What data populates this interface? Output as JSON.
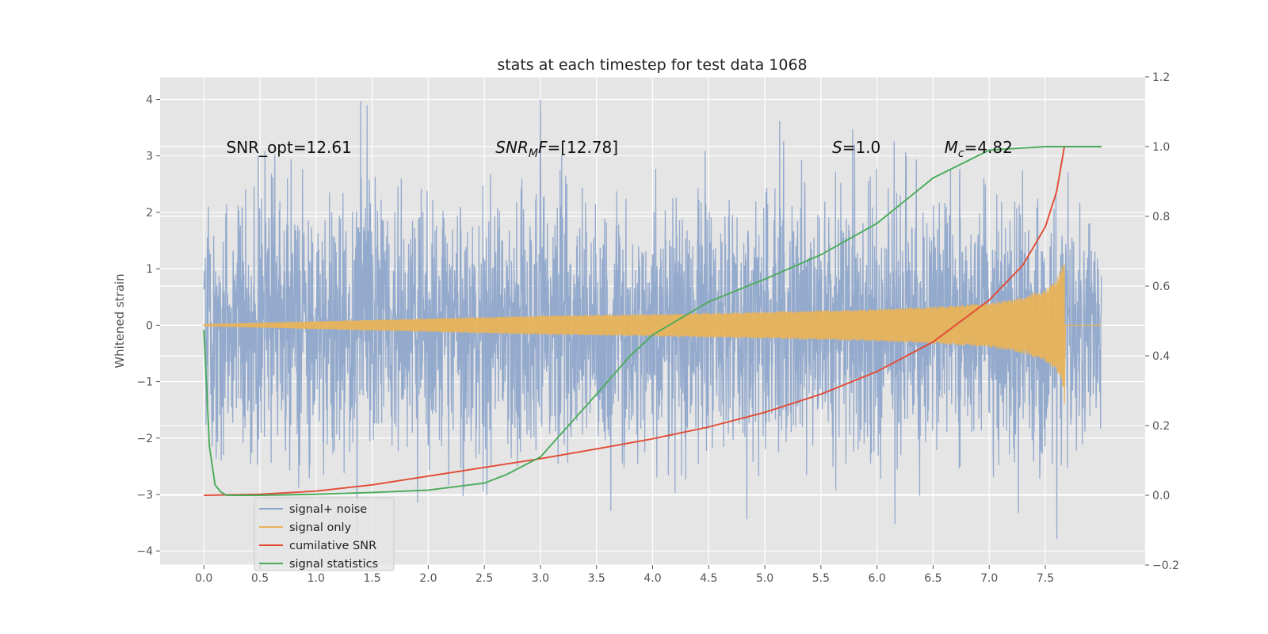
{
  "chart_data": {
    "type": "line",
    "title": "stats at each timestep for test data 1068",
    "xlabel": "",
    "ylabel": "Whitened strain",
    "xlim": [
      -0.39,
      8.39
    ],
    "ylim": [
      -4.25,
      4.4
    ],
    "y2lim": [
      -0.2,
      1.2
    ],
    "x_ticks": [
      "0.0",
      "0.5",
      "1.0",
      "1.5",
      "2.0",
      "2.5",
      "3.0",
      "3.5",
      "4.0",
      "4.5",
      "5.0",
      "5.5",
      "6.0",
      "6.5",
      "7.0",
      "7.5"
    ],
    "y_ticks": [
      "4",
      "3",
      "2",
      "1",
      "0",
      "−1",
      "−2",
      "−3",
      "−4"
    ],
    "y2_ticks": [
      "1.2",
      "1.0",
      "0.8",
      "0.6",
      "0.4",
      "0.2",
      "0.0",
      "−0.2"
    ],
    "grid": true,
    "legend_position": "lower-left",
    "annotations": [
      {
        "text": "SNR_opt=12.61",
        "x": 0.2,
        "y": 3.15
      },
      {
        "main": "SNR",
        "sub": "M",
        "rest": "F=[12.78]",
        "x": 2.6,
        "y": 3.15
      },
      {
        "main": "S",
        "sub": "",
        "rest": "=1.0",
        "x": 5.6,
        "y": 3.15
      },
      {
        "main": "M",
        "sub": "c",
        "rest": "=4.82",
        "x": 6.6,
        "y": 3.15
      }
    ],
    "series": [
      {
        "name": "signal+ noise",
        "color": "#8fa6cb",
        "axis": "left",
        "kind": "noise",
        "x_range": [
          0.0,
          8.0
        ],
        "amplitude_sigma": 1.15,
        "approx_range": [
          -4.2,
          4.0
        ]
      },
      {
        "name": "signal only",
        "color": "#e8b35a",
        "axis": "left",
        "kind": "chirp",
        "envelope": {
          "x": [
            0.0,
            1.0,
            2.0,
            3.0,
            4.0,
            5.0,
            6.0,
            6.5,
            7.0,
            7.3,
            7.5,
            7.6,
            7.66
          ],
          "y": [
            0.02,
            0.07,
            0.12,
            0.17,
            0.2,
            0.24,
            0.29,
            0.33,
            0.4,
            0.5,
            0.65,
            0.82,
            1.12
          ]
        },
        "end_x": 7.67
      },
      {
        "name": "cumilative SNR",
        "color": "#e24a33",
        "axis": "right",
        "x": [
          0.0,
          0.5,
          1.0,
          1.5,
          2.0,
          2.5,
          3.0,
          3.5,
          4.0,
          4.5,
          5.0,
          5.5,
          6.0,
          6.5,
          7.0,
          7.3,
          7.5,
          7.6,
          7.67,
          8.0
        ],
        "y": [
          0.0,
          0.003,
          0.012,
          0.03,
          0.055,
          0.08,
          0.105,
          0.133,
          0.162,
          0.196,
          0.238,
          0.29,
          0.355,
          0.44,
          0.56,
          0.66,
          0.77,
          0.87,
          1.0,
          1.0
        ]
      },
      {
        "name": "signal statistics",
        "color": "#4aab5a",
        "axis": "right",
        "x": [
          0.0,
          0.05,
          0.1,
          0.15,
          0.2,
          0.5,
          1.0,
          1.5,
          2.0,
          2.5,
          2.7,
          3.0,
          3.5,
          3.8,
          4.0,
          4.5,
          5.0,
          5.5,
          6.0,
          6.5,
          7.0,
          7.5,
          8.0
        ],
        "y": [
          0.475,
          0.14,
          0.03,
          0.01,
          0.0,
          0.0,
          0.003,
          0.008,
          0.015,
          0.035,
          0.06,
          0.11,
          0.29,
          0.4,
          0.46,
          0.555,
          0.62,
          0.69,
          0.78,
          0.91,
          0.99,
          1.0,
          1.0
        ]
      }
    ]
  }
}
